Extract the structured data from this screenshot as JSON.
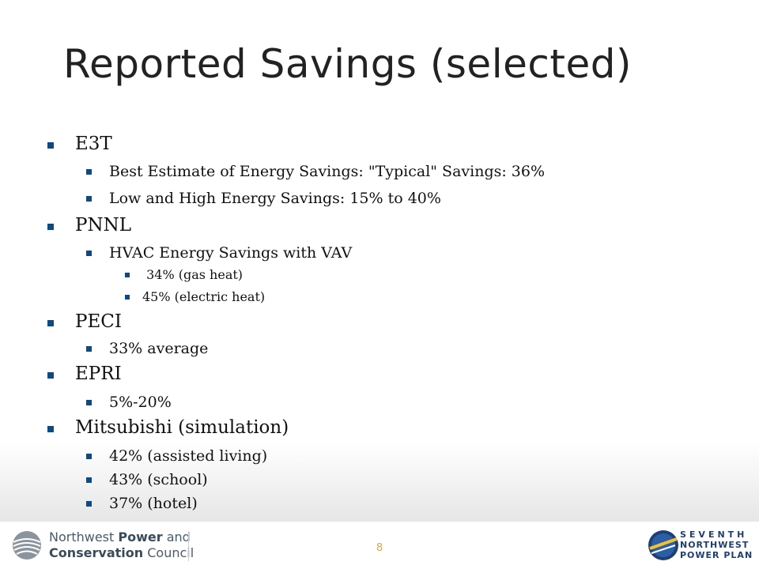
{
  "slide": {
    "title": "Reported Savings (selected)",
    "page_number": "8"
  },
  "bullets": {
    "e3t": "E3T",
    "e3t_best": "Best Estimate of Energy Savings: \"Typical\" Savings: 36%",
    "e3t_lowhigh": "Low and High Energy Savings: 15% to 40%",
    "pnnl": "PNNL",
    "pnnl_hvac": "HVAC Energy Savings with VAV",
    "pnnl_gas": " 34% (gas heat)",
    "pnnl_electric": "45% (electric heat)",
    "peci": "PECI",
    "peci_avg": "33% average",
    "epri": "EPRI",
    "epri_range": "5%-20%",
    "mitsubishi": "Mitsubishi (simulation)",
    "mits_assisted": "42% (assisted living)",
    "mits_school": "43% (school)",
    "mits_hotel": "37% (hotel)"
  },
  "footer": {
    "org_line1_normal": "Northwest ",
    "org_line1_bold": "Power",
    "org_line1_end": " and",
    "org_line2_bold": "Conservation",
    "org_line2_end": " Council",
    "plan_line1": "SEVENTH",
    "plan_line2": "NORTHWEST",
    "plan_line3": "POWER PLAN"
  },
  "colors": {
    "bullet_blue": "#0c4a86",
    "footer_navy": "#1f3f73",
    "page_number": "#d9a84a"
  }
}
